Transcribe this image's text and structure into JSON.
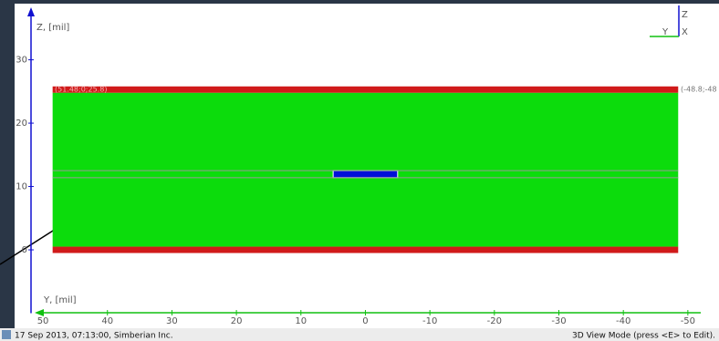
{
  "view": {
    "z_axis": {
      "label": "Z, [mil]",
      "lim": [
        -10,
        38
      ],
      "ticks": [
        0,
        10,
        20,
        30
      ],
      "color": "#1010d0"
    },
    "y_axis": {
      "label": "Y, [mil]",
      "lim": [
        51,
        -52
      ],
      "ticks": [
        50,
        40,
        30,
        20,
        10,
        0,
        -10,
        -20,
        -30,
        -40,
        -50
      ],
      "color": "#10c010"
    },
    "shapes": [
      {
        "color": "#0cdc0c",
        "y": [
          48.5,
          -48.5
        ],
        "z": [
          0.5,
          24.8
        ]
      },
      {
        "color": "#d01a1a",
        "y": [
          48.5,
          -48.5
        ],
        "z": [
          24.8,
          25.8
        ]
      },
      {
        "color": "#d01a1a",
        "y": [
          48.5,
          -48.5
        ],
        "z": [
          -0.5,
          0.5
        ]
      },
      {
        "color": "#0010d8",
        "y": [
          5,
          -5
        ],
        "z": [
          11.4,
          12.5
        ]
      }
    ],
    "layer_lines": [
      11.4,
      12.5
    ],
    "corner_left": "(51.48;0;25.8)",
    "corner_right": "(-48.8;-48",
    "triad": {
      "z": "Z",
      "y": "Y",
      "x": "X"
    },
    "footer_left": "17 Sep 2013, 07:13:00, Simberian Inc.",
    "footer_right": "3D View Mode (press <E> to Edit)."
  }
}
